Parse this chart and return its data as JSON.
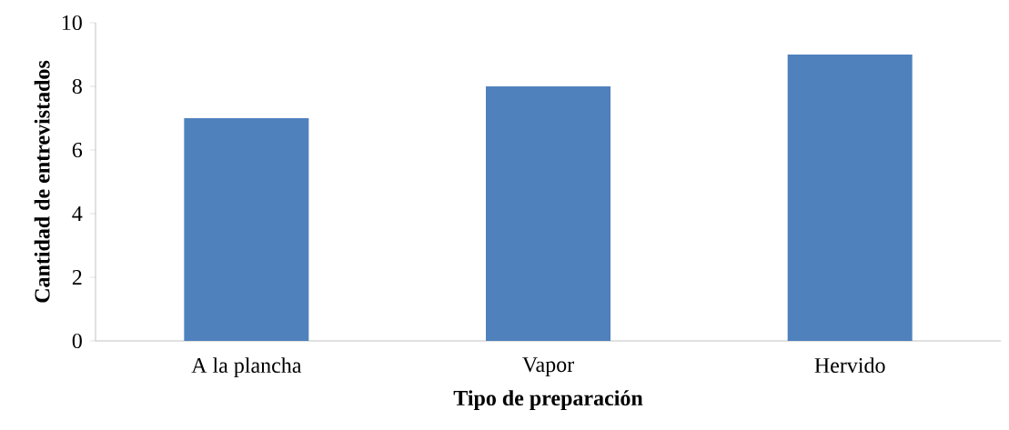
{
  "chart_data": {
    "type": "bar",
    "xlabel": "Tipo de preparación",
    "ylabel": "Cantidad de entrevistados",
    "categories": [
      "A la plancha",
      "Vapor",
      "Hervido"
    ],
    "values": [
      7,
      8,
      9
    ],
    "color": "#4f81bd",
    "ylim": [
      0,
      10
    ],
    "yticks": [
      0,
      2,
      4,
      6,
      8,
      10
    ],
    "grid": false
  }
}
